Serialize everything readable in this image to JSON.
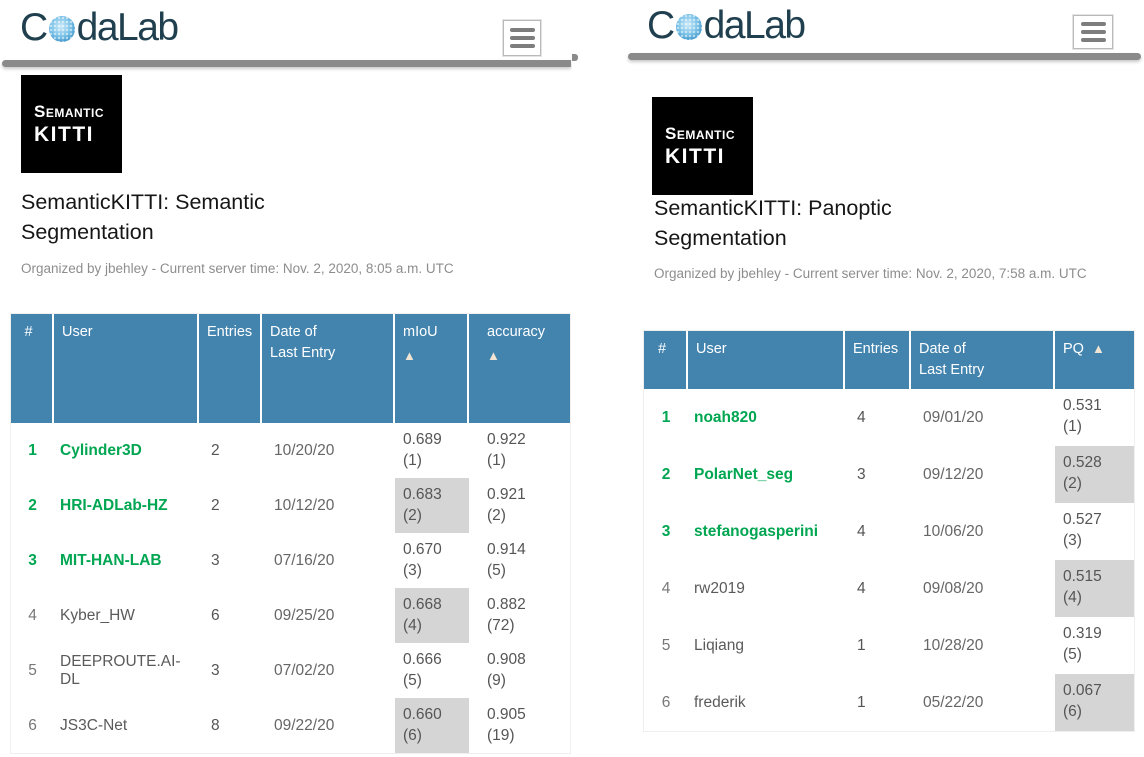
{
  "brand": {
    "prefix": "C",
    "suffix": "daLab"
  },
  "sort_indicator": "▲",
  "colors": {
    "header_bg": "#4384af",
    "green": "#00a651",
    "score_gray": "#d5d5d5",
    "divider": "#8a8a8a",
    "logo_text": "#20404f",
    "sort_arrow": "#f1e4d2"
  },
  "panels": [
    {
      "name": "semantic-segmentation",
      "logo_line1": "Semantic",
      "logo_line2": "KITTI",
      "title": "SemanticKITTI: Semantic Segmentation",
      "organized": "Organized by jbehley - Current server time: Nov. 2, 2020, 8:05 a.m. UTC",
      "headers": [
        {
          "key": "rank",
          "label": "#",
          "sort": false
        },
        {
          "key": "user",
          "label": "User",
          "sort": false
        },
        {
          "key": "entries",
          "label": "Entries",
          "sort": false
        },
        {
          "key": "date-of-last-entry",
          "label": "Date of\nLast Entry",
          "sort": false
        },
        {
          "key": "miou",
          "label": "mIoU",
          "sort": true
        },
        {
          "key": "accuracy",
          "label": "accuracy",
          "sort": true
        }
      ],
      "rows": [
        {
          "rank": "1",
          "user": "Cylinder3D",
          "top3": true,
          "entries": "2",
          "date": "10/20/20",
          "scores": [
            {
              "v": "0.689",
              "r": "(1)",
              "gray": false
            },
            {
              "v": "0.922",
              "r": "(1)",
              "gray": false
            }
          ]
        },
        {
          "rank": "2",
          "user": "HRI-ADLab-HZ",
          "top3": true,
          "entries": "2",
          "date": "10/12/20",
          "scores": [
            {
              "v": "0.683",
              "r": "(2)",
              "gray": true
            },
            {
              "v": "0.921",
              "r": "(2)",
              "gray": false
            }
          ]
        },
        {
          "rank": "3",
          "user": "MIT-HAN-LAB",
          "top3": true,
          "entries": "3",
          "date": "07/16/20",
          "scores": [
            {
              "v": "0.670",
              "r": "(3)",
              "gray": false
            },
            {
              "v": "0.914",
              "r": "(5)",
              "gray": false
            }
          ]
        },
        {
          "rank": "4",
          "user": "Kyber_HW",
          "top3": false,
          "entries": "6",
          "date": "09/25/20",
          "scores": [
            {
              "v": "0.668",
              "r": "(4)",
              "gray": true
            },
            {
              "v": "0.882",
              "r": "(72)",
              "gray": false
            }
          ]
        },
        {
          "rank": "5",
          "user": "DEEPROUTE.AI-DL",
          "top3": false,
          "entries": "3",
          "date": "07/02/20",
          "scores": [
            {
              "v": "0.666",
              "r": "(5)",
              "gray": false
            },
            {
              "v": "0.908",
              "r": "(9)",
              "gray": false
            }
          ]
        },
        {
          "rank": "6",
          "user": "JS3C-Net",
          "top3": false,
          "entries": "8",
          "date": "09/22/20",
          "scores": [
            {
              "v": "0.660",
              "r": "(6)",
              "gray": true
            },
            {
              "v": "0.905",
              "r": "(19)",
              "gray": false
            }
          ]
        }
      ]
    },
    {
      "name": "panoptic-segmentation",
      "logo_line1": "Semantic",
      "logo_line2": "KITTI",
      "title": "SemanticKITTI: Panoptic Segmentation",
      "organized": "Organized by jbehley - Current server time: Nov. 2, 2020, 7:58 a.m. UTC",
      "headers": [
        {
          "key": "rank",
          "label": "#",
          "sort": false
        },
        {
          "key": "user",
          "label": "User",
          "sort": false
        },
        {
          "key": "entries",
          "label": "Entries",
          "sort": false
        },
        {
          "key": "date-of-last-entry",
          "label": "Date of\nLast Entry",
          "sort": false
        },
        {
          "key": "pq",
          "label": "PQ",
          "sort": true
        }
      ],
      "rows": [
        {
          "rank": "1",
          "user": "noah820",
          "top3": true,
          "entries": "4",
          "date": "09/01/20",
          "scores": [
            {
              "v": "0.531",
              "r": "(1)",
              "gray": false
            }
          ]
        },
        {
          "rank": "2",
          "user": "PolarNet_seg",
          "top3": true,
          "entries": "3",
          "date": "09/12/20",
          "scores": [
            {
              "v": "0.528",
              "r": "(2)",
              "gray": true
            }
          ]
        },
        {
          "rank": "3",
          "user": "stefanogasperini",
          "top3": true,
          "entries": "4",
          "date": "10/06/20",
          "scores": [
            {
              "v": "0.527",
              "r": "(3)",
              "gray": false
            }
          ]
        },
        {
          "rank": "4",
          "user": "rw2019",
          "top3": false,
          "entries": "4",
          "date": "09/08/20",
          "scores": [
            {
              "v": "0.515",
              "r": "(4)",
              "gray": true
            }
          ]
        },
        {
          "rank": "5",
          "user": "Liqiang",
          "top3": false,
          "entries": "1",
          "date": "10/28/20",
          "scores": [
            {
              "v": "0.319",
              "r": "(5)",
              "gray": false
            }
          ]
        },
        {
          "rank": "6",
          "user": "frederik",
          "top3": false,
          "entries": "1",
          "date": "05/22/20",
          "scores": [
            {
              "v": "0.067",
              "r": "(6)",
              "gray": true
            }
          ]
        }
      ]
    }
  ]
}
